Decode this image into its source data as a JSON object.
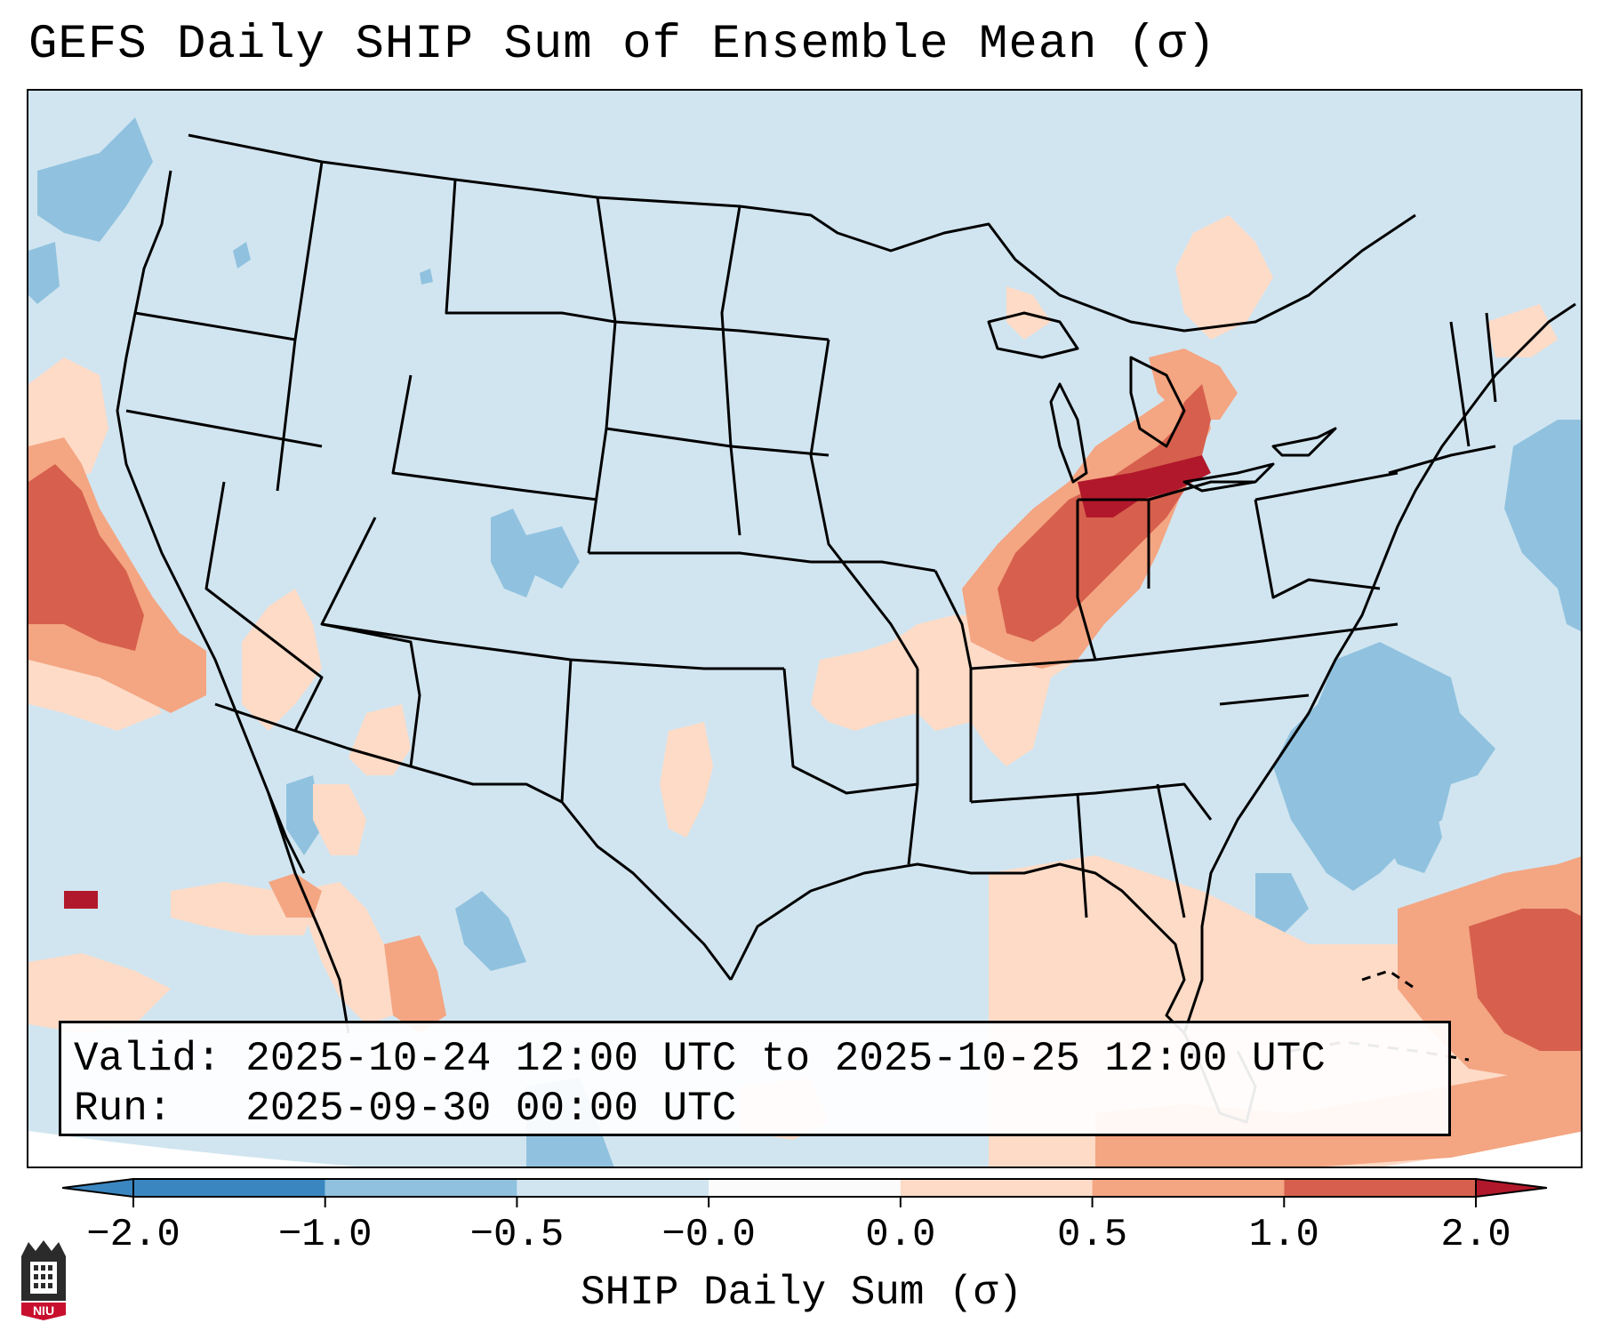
{
  "title": "GEFS Daily SHIP Sum of Ensemble Mean (σ)",
  "info": {
    "valid_label": "Valid:",
    "valid_value": "2025-10-24 12:00 UTC to 2025-10-25 12:00 UTC",
    "run_label": "Run:",
    "run_value": "2025-09-30 00:00 UTC"
  },
  "colorbar": {
    "label": "SHIP Daily Sum (σ)",
    "ticks": [
      "−2.0",
      "−1.0",
      "−0.5",
      "−0.0",
      "0.0",
      "0.5",
      "1.0",
      "2.0"
    ],
    "colors": [
      "#3a86c0",
      "#90c2df",
      "#d1e5f0",
      "#fbfbfb",
      "#fddbc7",
      "#f4a582",
      "#d6604d",
      "#b2182b"
    ]
  },
  "map": {
    "background_color": "#d1e5f0",
    "region": "Contiguous United States, southern Canada, northern Mexico"
  },
  "logo": {
    "text": "NIU"
  }
}
